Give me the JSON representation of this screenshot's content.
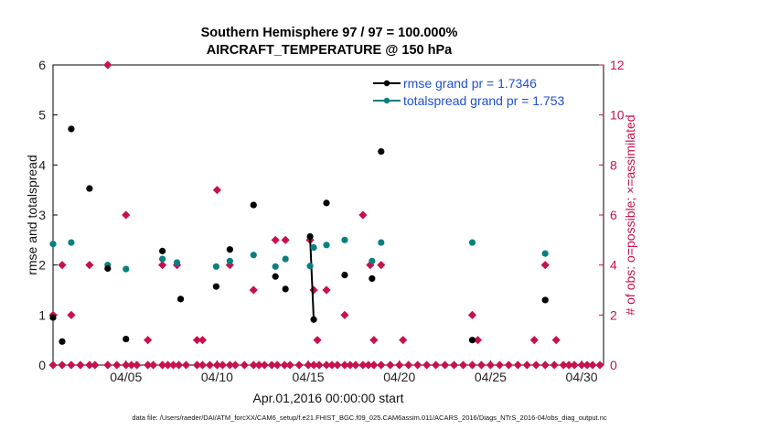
{
  "title_line1": "Southern Hemisphere 97 / 97 = 100.000%",
  "title_line2": "AIRCRAFT_TEMPERATURE @ 150 hPa",
  "footer": "data file: /Users/raeder/DAI/ATM_forcXX/CAM6_setup/f.e21.FHIST_BGC.f09_025.CAM6assim.011/ACARS_2016/Diags_NTrS_2016-04/obs_diag_output.nc",
  "colors": {
    "rmse": "#000000",
    "spread": "#0b7f80",
    "obs": "#c8104f",
    "legend_text": "#1f4fd0"
  },
  "chart_data": {
    "type": "scatter",
    "title": "Southern Hemisphere 97 / 97 = 100.000% AIRCRAFT_TEMPERATURE @ 150 hPa",
    "xlabel": "Apr.01,2016 00:00:00 start",
    "ylabel": "rmse and totalspread",
    "y2label": "# of obs: o=possible; ×=assimilated",
    "xlim": [
      1,
      31.2
    ],
    "ylim": [
      0,
      6
    ],
    "y2lim": [
      0,
      12
    ],
    "yticks": [
      "0",
      "1",
      "2",
      "3",
      "4",
      "5",
      "6"
    ],
    "y2ticks": [
      "0",
      "2",
      "4",
      "6",
      "8",
      "10",
      "12"
    ],
    "xticks": [
      {
        "x": 5,
        "label": "04/05"
      },
      {
        "x": 10,
        "label": "04/10"
      },
      {
        "x": 15,
        "label": "04/15"
      },
      {
        "x": 20,
        "label": "04/20"
      },
      {
        "x": 25,
        "label": "04/25"
      },
      {
        "x": 30,
        "label": "04/30"
      }
    ],
    "legend": [
      {
        "label": "rmse grand pr = 1.7346"
      },
      {
        "label": "totalspread grand pr = 1.753"
      }
    ],
    "rmse_points": [
      [
        1,
        0.95
      ],
      [
        1.5,
        0.47
      ],
      [
        2,
        4.72
      ],
      [
        3,
        3.53
      ],
      [
        4,
        1.93
      ],
      [
        5,
        0.52
      ],
      [
        7,
        2.28
      ],
      [
        8,
        1.32
      ],
      [
        9.95,
        1.57
      ],
      [
        10.7,
        2.31
      ],
      [
        12,
        3.2
      ],
      [
        13.2,
        1.77
      ],
      [
        13.75,
        1.52
      ],
      [
        16,
        3.24
      ],
      [
        17,
        1.8
      ],
      [
        18.5,
        1.73
      ],
      [
        19,
        4.27
      ],
      [
        24,
        0.5
      ],
      [
        28,
        1.3
      ]
    ],
    "rmse_segment": [
      [
        15.1,
        2.57
      ],
      [
        15.3,
        0.91
      ]
    ],
    "spread_points": [
      [
        1,
        2.42
      ],
      [
        2,
        2.45
      ],
      [
        4,
        2.0
      ],
      [
        5,
        1.92
      ],
      [
        7,
        2.12
      ],
      [
        7.8,
        2.05
      ],
      [
        9.95,
        1.97
      ],
      [
        10.7,
        2.08
      ],
      [
        12,
        2.2
      ],
      [
        13.2,
        1.97
      ],
      [
        13.75,
        2.12
      ],
      [
        15.1,
        1.98
      ],
      [
        15.3,
        2.35
      ],
      [
        16,
        2.4
      ],
      [
        17,
        2.5
      ],
      [
        18.5,
        2.08
      ],
      [
        19,
        2.45
      ],
      [
        24,
        2.45
      ],
      [
        28,
        2.23
      ]
    ],
    "obs_diamonds": [
      [
        1,
        2
      ],
      [
        1.5,
        4
      ],
      [
        2,
        2
      ],
      [
        3,
        4
      ],
      [
        4,
        12
      ],
      [
        5,
        6
      ],
      [
        6.2,
        1
      ],
      [
        7,
        4
      ],
      [
        7.8,
        4
      ],
      [
        8.9,
        1
      ],
      [
        9.2,
        1
      ],
      [
        10,
        7
      ],
      [
        10.7,
        4
      ],
      [
        12,
        3
      ],
      [
        13.2,
        5
      ],
      [
        13.75,
        5
      ],
      [
        15.1,
        5
      ],
      [
        15.3,
        3
      ],
      [
        15.5,
        1
      ],
      [
        16,
        3
      ],
      [
        17,
        2
      ],
      [
        18,
        6
      ],
      [
        18.6,
        1
      ],
      [
        18.4,
        4
      ],
      [
        19,
        4
      ],
      [
        20.2,
        1
      ],
      [
        24,
        2
      ],
      [
        24.3,
        1
      ],
      [
        27.4,
        1
      ],
      [
        28,
        4
      ],
      [
        28.6,
        1
      ]
    ],
    "obs_zero_x": [
      1,
      1.5,
      2,
      2.5,
      3,
      3.3,
      4,
      4.5,
      5,
      5.3,
      5.6,
      6.2,
      6.5,
      7,
      7.3,
      7.6,
      7.9,
      8.3,
      8.9,
      9.2,
      9.6,
      10,
      10.3,
      10.7,
      11,
      11.5,
      12,
      12.3,
      12.6,
      13,
      13.3,
      13.7,
      14,
      14.5,
      15,
      15.3,
      15.6,
      16,
      16.3,
      16.6,
      17,
      17.3,
      17.6,
      18,
      18.3,
      18.6,
      19,
      19.5,
      20,
      20.5,
      21,
      21.5,
      22,
      22.5,
      23,
      23.5,
      24,
      24.5,
      25,
      25.5,
      26,
      26.5,
      27,
      27.5,
      28,
      28.5,
      29,
      29.3,
      29.6,
      30,
      30.3,
      30.6,
      31
    ]
  }
}
